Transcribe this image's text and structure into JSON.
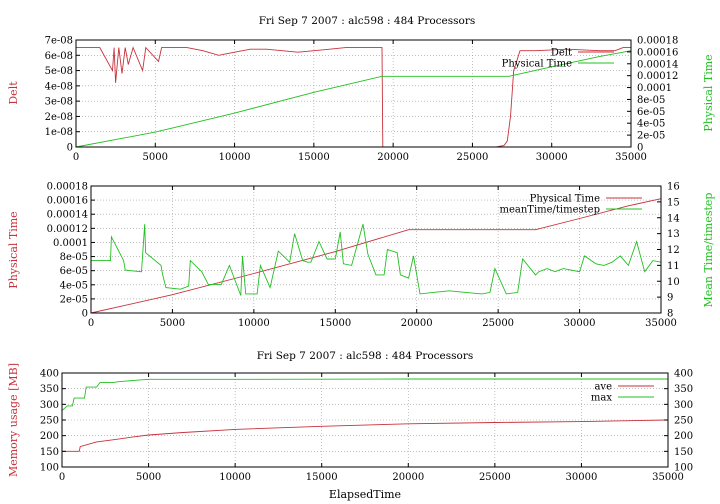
{
  "chart_data": [
    {
      "type": "line",
      "title": "Fri Sep 7 2007 : alc598 : 484 Processors",
      "ylabel_left": "Delt",
      "ylabel_right": "Physical Time",
      "xlim": [
        0,
        35000
      ],
      "ylim_left": [
        0,
        7e-08
      ],
      "ylim_right": [
        0,
        0.00018
      ],
      "x_ticks": [
        "0",
        "5000",
        "10000",
        "15000",
        "20000",
        "25000",
        "30000",
        "35000"
      ],
      "y_left_ticks": [
        "0",
        "1e-08",
        "2e-08",
        "3e-08",
        "4e-08",
        "5e-08",
        "6e-08",
        "7e-08"
      ],
      "y_right_ticks": [
        "0",
        "2e-05",
        "4e-05",
        "6e-05",
        "8e-05",
        "0.0001",
        "0.00012",
        "0.00014",
        "0.00016",
        "0.00018"
      ],
      "grid": true,
      "legend_position": "top-right",
      "series": [
        {
          "name": "Delt",
          "axis": "left",
          "color": "#c8323c",
          "x": [
            0,
            1500,
            2300,
            2400,
            2500,
            2700,
            2900,
            3100,
            3300,
            3600,
            4200,
            4400,
            5200,
            5400,
            6000,
            7000,
            8000,
            9000,
            10000,
            11000,
            12000,
            13000,
            14000,
            15000,
            16000,
            17000,
            18000,
            19000,
            19300,
            19350,
            19400,
            26500,
            27000,
            27200,
            27400,
            27600,
            28000,
            29000,
            31000,
            33000,
            34000,
            34500,
            35000
          ],
          "y": [
            6.5e-08,
            6.5e-08,
            5e-08,
            6.5e-08,
            4.2e-08,
            6.5e-08,
            4.8e-08,
            6.5e-08,
            5.4e-08,
            6.5e-08,
            5e-08,
            6.5e-08,
            5.6e-08,
            6.5e-08,
            6.5e-08,
            6.5e-08,
            6.3e-08,
            6e-08,
            6.2e-08,
            6.4e-08,
            6.4e-08,
            6.3e-08,
            6.2e-08,
            6.3e-08,
            6.4e-08,
            6.5e-08,
            6.5e-08,
            6.5e-08,
            6.5e-08,
            0,
            0,
            0,
            1e-09,
            4e-09,
            2e-08,
            5e-08,
            6.3e-08,
            6.3e-08,
            6.4e-08,
            6.3e-08,
            6.3e-08,
            6.5e-08,
            6.5e-08
          ]
        },
        {
          "name": "Physical Time",
          "axis": "right",
          "color": "#22c022",
          "x": [
            0,
            5000,
            10000,
            15000,
            19300,
            27300,
            30000,
            33000,
            35000
          ],
          "y": [
            0,
            2.5e-05,
            5.7e-05,
            9.2e-05,
            0.000119,
            0.000119,
            0.000135,
            0.000152,
            0.000162
          ]
        }
      ]
    },
    {
      "type": "line",
      "title": "",
      "ylabel_left": "Physical Time",
      "ylabel_right": "Mean Time/timestep",
      "xlim": [
        0,
        35000
      ],
      "ylim_left": [
        0,
        0.00018
      ],
      "ylim_right": [
        8,
        16
      ],
      "x_ticks": [
        "0",
        "5000",
        "10000",
        "15000",
        "20000",
        "25000",
        "30000",
        "35000"
      ],
      "y_left_ticks": [
        "0",
        "2e-05",
        "4e-05",
        "6e-05",
        "8e-05",
        "0.0001",
        "0.00012",
        "0.00014",
        "0.00016",
        "0.00018"
      ],
      "y_right_ticks": [
        "8",
        "9",
        "10",
        "11",
        "12",
        "13",
        "14",
        "15",
        "16"
      ],
      "grid": true,
      "legend_position": "top-right",
      "series": [
        {
          "name": "Physical Time",
          "axis": "left",
          "color": "#c8323c",
          "x": [
            0,
            5000,
            10000,
            15000,
            19500,
            27300,
            30000,
            33000,
            35000
          ],
          "y": [
            0,
            2.6e-05,
            5.6e-05,
            8.7e-05,
            0.000118,
            0.000118,
            0.000134,
            0.000152,
            0.000162
          ]
        },
        {
          "name": "meanTime/timestep",
          "axis": "right",
          "color": "#22c022",
          "x": [
            0,
            1200,
            1250,
            2000,
            2100,
            3100,
            3300,
            3350,
            4300,
            4400,
            4600,
            5500,
            6000,
            6100,
            6800,
            7200,
            8000,
            8500,
            9200,
            9300,
            9500,
            10200,
            10400,
            11000,
            11500,
            12200,
            12500,
            13000,
            13300,
            13500,
            14000,
            14500,
            15000,
            15300,
            15500,
            16000,
            16700,
            17000,
            17500,
            18000,
            18200,
            18800,
            19000,
            19500,
            19800,
            20200,
            21000,
            22000,
            23000,
            24000,
            24500,
            24800,
            25500,
            26200,
            26500,
            27300,
            27500,
            28000,
            28500,
            29000,
            30000,
            30300,
            31000,
            31500,
            32000,
            32500,
            33000,
            33500,
            34000,
            34500,
            35000
          ],
          "y": [
            11.3,
            11.3,
            12.8,
            11.3,
            10.7,
            10.6,
            13.6,
            11.8,
            11.0,
            10.4,
            9.6,
            9.5,
            9.7,
            11.3,
            10.6,
            9.8,
            9.8,
            11.0,
            9.1,
            11.6,
            9.2,
            9.2,
            11.0,
            9.6,
            11.9,
            11.2,
            13.0,
            11.3,
            11.2,
            11.2,
            12.5,
            11.4,
            11.4,
            13.1,
            11.1,
            11.0,
            13.6,
            11.7,
            10.4,
            10.4,
            12.0,
            11.8,
            10.4,
            10.2,
            11.6,
            9.2,
            9.3,
            9.4,
            9.3,
            9.2,
            9.3,
            10.8,
            9.2,
            9.3,
            11.4,
            10.4,
            10.6,
            10.8,
            10.6,
            10.8,
            10.6,
            11.6,
            11.1,
            11.0,
            11.2,
            11.6,
            11.0,
            12.5,
            10.6,
            11.3,
            11.2
          ]
        }
      ]
    },
    {
      "type": "line",
      "title": "Fri Sep 7 2007 : alc598 : 484 Processors",
      "xlabel": "ElapsedTime",
      "ylabel_left": "Memory usage [MB]",
      "xlim": [
        0,
        35000
      ],
      "ylim_left": [
        100,
        400
      ],
      "ylim_right": [
        100,
        400
      ],
      "x_ticks": [
        "0",
        "5000",
        "10000",
        "15000",
        "20000",
        "25000",
        "30000",
        "35000"
      ],
      "y_left_ticks": [
        "100",
        "150",
        "200",
        "250",
        "300",
        "350",
        "400"
      ],
      "y_right_ticks": [
        "100",
        "150",
        "200",
        "250",
        "300",
        "350",
        "400"
      ],
      "grid": true,
      "legend_position": "top-right",
      "series": [
        {
          "name": "ave",
          "axis": "left",
          "color": "#c8323c",
          "x": [
            0,
            1000,
            1050,
            2000,
            3000,
            4000,
            5000,
            7000,
            10000,
            15000,
            20000,
            25000,
            30000,
            35000
          ],
          "y": [
            150,
            150,
            165,
            180,
            187,
            195,
            202,
            210,
            220,
            230,
            238,
            242,
            245,
            250
          ]
        },
        {
          "name": "max",
          "axis": "left",
          "color": "#22c022",
          "x": [
            0,
            300,
            600,
            700,
            1300,
            1400,
            2000,
            2200,
            3000,
            3200,
            4500,
            5000,
            10000,
            20000,
            35000
          ],
          "y": [
            280,
            295,
            295,
            320,
            320,
            355,
            355,
            370,
            370,
            372,
            378,
            380,
            380,
            381,
            381
          ]
        }
      ]
    }
  ]
}
